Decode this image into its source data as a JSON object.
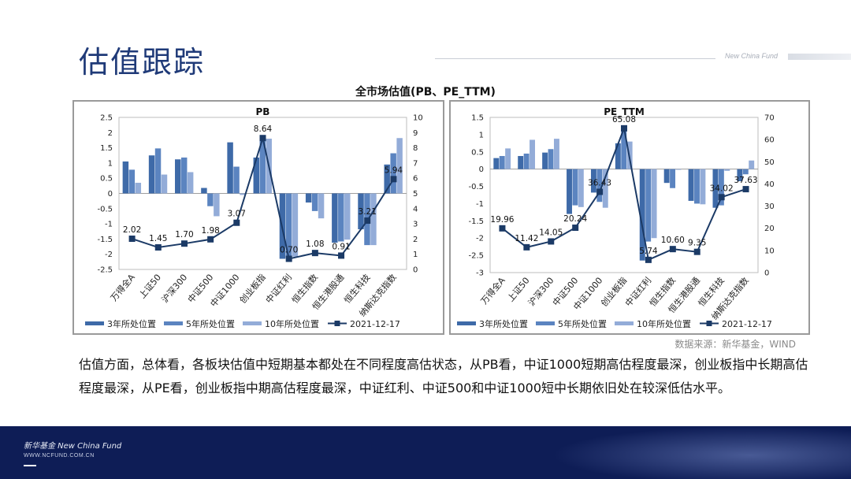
{
  "header": {
    "title": "估值跟踪",
    "brand": "New China Fund"
  },
  "figure_title": "全市场估值(PB、PE_TTM)",
  "source_note": "数据来源：新华基金，WIND",
  "body_text": "估值方面，总体看，各板块估值中短期基本都处在不同程度高估状态，从PB看，中证1000短期高估程度最深，创业板指中长期高估程度最深，从PE看，创业板指中期高估程度最深，中证红利、中证500和中证1000短中长期依旧处在较深低估水平。",
  "footer": {
    "brand": "新华基金 New China Fund",
    "url": "WWW.NCFUND.COM.CN"
  },
  "colors": {
    "bar_3y": "#3e6aa8",
    "bar_5y": "#5b84c0",
    "bar_10y": "#93acd8",
    "line": "#1b3a66",
    "title": "#1f3a78"
  },
  "chart_data": [
    {
      "type": "bar",
      "title": "PB",
      "categories": [
        "万得全A",
        "上证50",
        "沪深300",
        "中证500",
        "中证1000",
        "创业板指",
        "中证红利",
        "恒生指数",
        "恒生港股通",
        "恒生科技",
        "纳斯达克指数"
      ],
      "left_axis": {
        "ylim": [
          -2.5,
          2.5
        ],
        "ticks": [
          "2.5",
          "2",
          "1.5",
          "1",
          "0.5",
          "0",
          "-0.5",
          "-1",
          "-1.5",
          "-2",
          "-2.5"
        ]
      },
      "right_axis": {
        "ylim": [
          0,
          10
        ],
        "ticks": [
          "10",
          "9",
          "8",
          "7",
          "6",
          "5",
          "4",
          "3",
          "2",
          "1",
          "0"
        ]
      },
      "series": [
        {
          "name": "3年所处位置",
          "axis": "left",
          "values": [
            1.05,
            1.25,
            1.12,
            0.18,
            1.68,
            1.18,
            -2.15,
            -0.3,
            -1.62,
            -1.18,
            0.95
          ]
        },
        {
          "name": "5年所处位置",
          "axis": "left",
          "values": [
            0.78,
            1.48,
            1.18,
            -0.42,
            0.88,
            1.72,
            -2.12,
            -0.58,
            -1.58,
            -1.7,
            1.32
          ]
        },
        {
          "name": "10年所处位置",
          "axis": "left",
          "values": [
            0.35,
            0.62,
            0.7,
            -0.75,
            -0.05,
            1.8,
            -2.08,
            -0.82,
            -1.52,
            -1.7,
            1.82
          ]
        },
        {
          "name": "2021-12-17",
          "axis": "right",
          "type": "line",
          "values": [
            2.02,
            1.45,
            1.7,
            1.98,
            3.07,
            8.64,
            0.7,
            1.08,
            0.91,
            3.21,
            5.94
          ]
        }
      ],
      "data_labels": [
        "2.02",
        "1.45",
        "1.70",
        "1.98",
        "3.07",
        "8.64",
        "0.70",
        "1.08",
        "0.91",
        "3.21",
        "5.94"
      ],
      "legend": [
        "3年所处位置",
        "5年所处位置",
        "10年所处位置",
        "2021-12-17"
      ],
      "legend_position": "bottom"
    },
    {
      "type": "bar",
      "title": "PE_TTM",
      "categories": [
        "万得全A",
        "上证50",
        "沪深300",
        "中证500",
        "中证1000",
        "创业板指",
        "中证红利",
        "恒生指数",
        "恒生港股通",
        "恒生科技",
        "纳斯达克指数"
      ],
      "left_axis": {
        "ylim": [
          -3,
          1.5
        ],
        "ticks": [
          "1.5",
          "1",
          "0.5",
          "0",
          "-0.5",
          "-1",
          "-1.5",
          "-2",
          "-2.5",
          "-3"
        ]
      },
      "right_axis": {
        "ylim": [
          0,
          70
        ],
        "ticks": [
          "70",
          "60",
          "50",
          "40",
          "30",
          "20",
          "10",
          "0"
        ]
      },
      "series": [
        {
          "name": "3年所处位置",
          "axis": "left",
          "values": [
            0.32,
            0.38,
            0.48,
            -1.3,
            -0.68,
            0.75,
            -2.65,
            -0.4,
            -0.92,
            -1.12,
            -0.35
          ]
        },
        {
          "name": "5年所处位置",
          "axis": "left",
          "values": [
            0.38,
            0.45,
            0.58,
            -1.05,
            -0.95,
            1.18,
            -2.1,
            -0.55,
            -1.0,
            -1.05,
            -0.15
          ]
        },
        {
          "name": "10年所处位置",
          "axis": "left",
          "values": [
            0.6,
            0.85,
            0.88,
            -1.1,
            -1.12,
            0.8,
            -2.0,
            -0.02,
            -1.02,
            -0.05,
            0.25
          ]
        },
        {
          "name": "2021-12-17",
          "axis": "right",
          "type": "line",
          "values": [
            19.96,
            11.42,
            14.05,
            20.24,
            36.43,
            65.08,
            5.74,
            10.6,
            9.35,
            34.02,
            37.63
          ]
        }
      ],
      "data_labels": [
        "19.96",
        "11.42",
        "14.05",
        "20.24",
        "36.43",
        "65.08",
        "5.74",
        "10.60",
        "9.35",
        "34.02",
        "37.63"
      ],
      "legend": [
        "3年所处位置",
        "5年所处位置",
        "10年所处位置",
        "2021-12-17"
      ],
      "legend_position": "bottom"
    }
  ]
}
